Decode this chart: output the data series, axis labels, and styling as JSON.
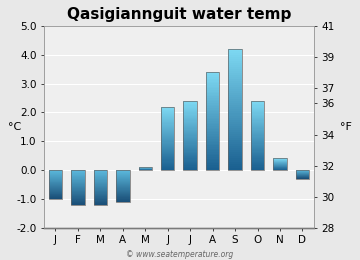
{
  "title": "Qasigiannguit water temp",
  "months": [
    "J",
    "F",
    "M",
    "A",
    "M",
    "J",
    "J",
    "A",
    "S",
    "O",
    "N",
    "D"
  ],
  "values": [
    -1.0,
    -1.2,
    -1.2,
    -1.1,
    0.1,
    2.2,
    2.4,
    3.4,
    4.2,
    2.4,
    0.4,
    -0.3
  ],
  "ylim_left": [
    -2.0,
    5.0
  ],
  "ylim_right": [
    28,
    41
  ],
  "ylabel_left": "°C",
  "ylabel_right": "°F",
  "yticks_left": [
    -2.0,
    -1.0,
    0.0,
    1.0,
    2.0,
    3.0,
    4.0,
    5.0
  ],
  "yticks_right_show": [
    28,
    30,
    32,
    34,
    36,
    37,
    39,
    41
  ],
  "background_color": "#e8e8e8",
  "plot_bg_color": "#efefef",
  "bar_pos_top": "#7dd8f2",
  "bar_pos_bot": "#1a6090",
  "bar_neg_top": "#5bb8dc",
  "bar_neg_bot": "#1a4f78",
  "watermark": "© www.seatemperature.org",
  "title_fontsize": 11,
  "axis_fontsize": 8,
  "tick_fontsize": 7.5
}
